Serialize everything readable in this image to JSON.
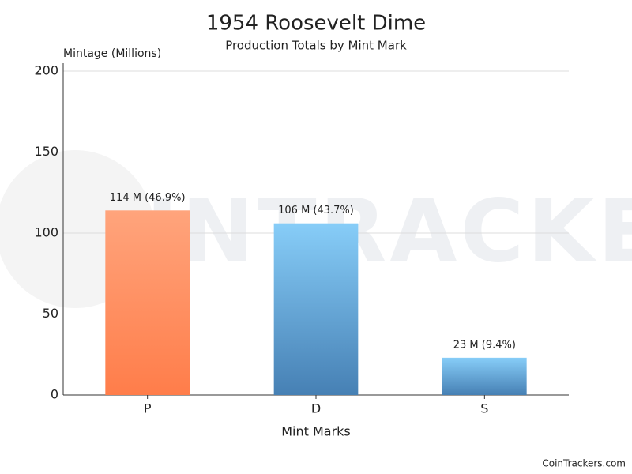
{
  "chart_data": {
    "type": "bar",
    "title": "1954 Roosevelt Dime",
    "subtitle": "Production Totals by Mint Mark",
    "y_axis_label": "Mintage (Millions)",
    "x_axis_label": "Mint Marks",
    "watermark": "COINTRACKERS",
    "credit": "CoinTrackers.com",
    "categories": [
      "P",
      "D",
      "S"
    ],
    "values": [
      114,
      106,
      23
    ],
    "value_labels": [
      "114 M (46.9%)",
      "106 M (43.7%)",
      "23 M (9.4%)"
    ],
    "colors": [
      [
        "#ffa47c",
        "#ff7d4a"
      ],
      [
        "#87cdf8",
        "#4680b4"
      ],
      [
        "#87cdf8",
        "#4680b4"
      ]
    ],
    "ylim": [
      0,
      200
    ],
    "yticks": [
      0,
      50,
      100,
      150,
      200
    ],
    "grid": true
  }
}
